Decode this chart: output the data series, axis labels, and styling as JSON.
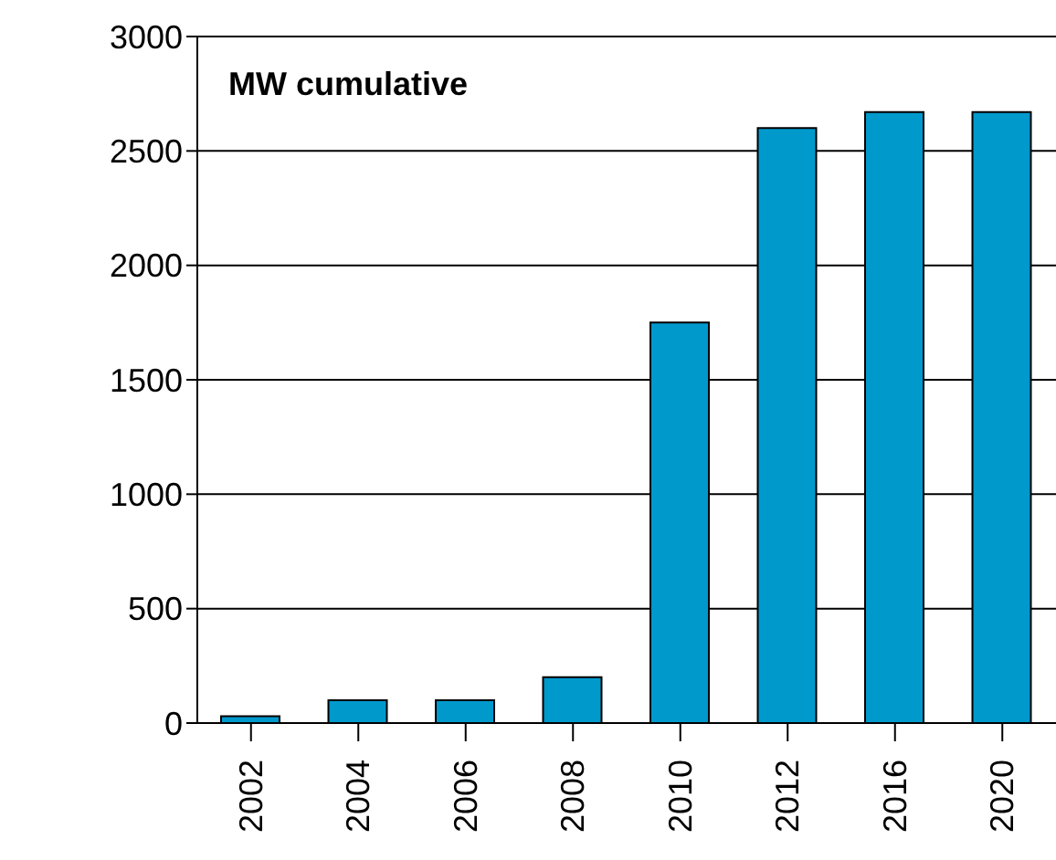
{
  "chart_data": {
    "type": "bar",
    "title": "MW cumulative",
    "categories": [
      "2002",
      "2004",
      "2006",
      "2008",
      "2010",
      "2012",
      "2016",
      "2020"
    ],
    "values": [
      30,
      100,
      100,
      200,
      1750,
      2600,
      2670,
      2670
    ],
    "color": "#0099cc",
    "ylim": [
      0,
      3000
    ],
    "yticks": [
      0,
      500,
      1000,
      1500,
      2000,
      2500,
      3000
    ],
    "grid": "y"
  }
}
